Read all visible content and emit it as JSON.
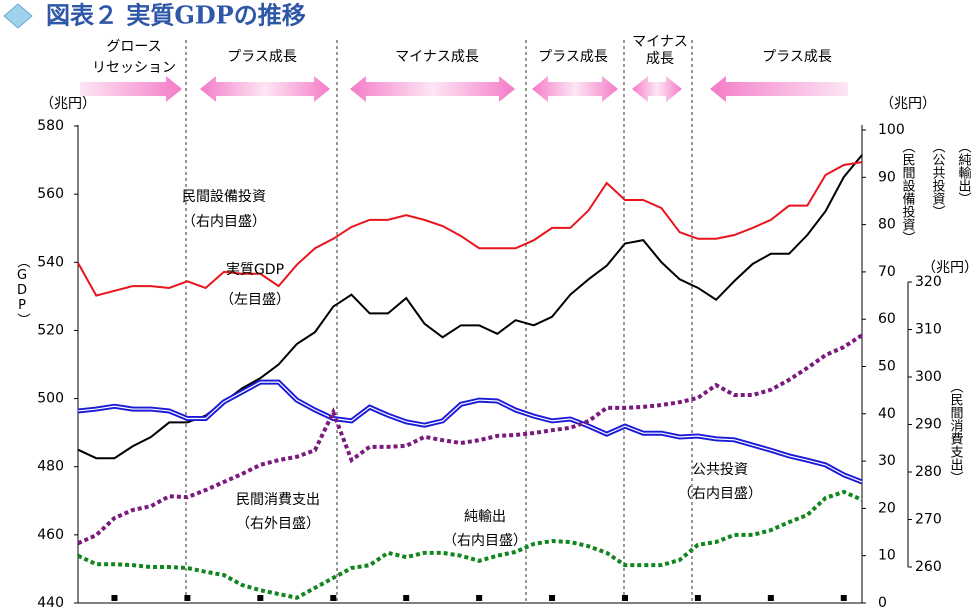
{
  "chart_data": {
    "type": "line",
    "title": "図表２ 実質GDPの推移",
    "categories": [
      null,
      null,
      null,
      null,
      null,
      null,
      null,
      null,
      null,
      null,
      null,
      null,
      null,
      null,
      null,
      null,
      null,
      null,
      null,
      null,
      null,
      null,
      null,
      null,
      null,
      null,
      null,
      null,
      null,
      null,
      null,
      null,
      null,
      null,
      null,
      null,
      null,
      null,
      null,
      null,
      null,
      null,
      null,
      null
    ],
    "ylim": [
      440,
      580
    ],
    "yticks": [
      440,
      460,
      480,
      500,
      520,
      540,
      560,
      580
    ],
    "y2lim": [
      0,
      100
    ],
    "y2ticks": [
      0,
      10,
      20,
      30,
      40,
      50,
      60,
      70,
      80,
      90,
      100
    ],
    "y3lim": [
      260,
      320
    ],
    "y3ticks": [
      260,
      270,
      280,
      290,
      300,
      310,
      320
    ],
    "units": {
      "y": "（兆円）",
      "y2": "（兆円）",
      "y3": "（兆円）"
    },
    "axis_titles": {
      "y": "（GDP）",
      "y2": [
        "（民間設備投資）",
        "（公共投資）",
        "（純輸出）"
      ],
      "y3": "（民間消費支出）"
    },
    "phases": [
      {
        "label": [
          "グロース",
          "リセッション"
        ]
      },
      {
        "label": [
          "プラス成長"
        ]
      },
      {
        "label": [
          "マイナス成長"
        ]
      },
      {
        "label": [
          "プラス成長"
        ]
      },
      {
        "label": [
          "マイナス",
          "成長"
        ]
      },
      {
        "label": [
          "プラス成長"
        ]
      }
    ],
    "series": [
      {
        "name": "実質GDP",
        "note": "（左目盛）",
        "color": "#000000",
        "axis": "y",
        "style": "solid",
        "values": [
          485,
          482.5,
          482.5,
          486,
          488.7,
          493,
          493,
          495,
          499,
          503,
          506,
          510,
          516,
          519.5,
          527,
          530.5,
          525,
          525,
          529.5,
          522,
          518,
          521.5,
          521.5,
          519,
          523,
          521.5,
          524,
          530.5,
          535,
          539,
          545.5,
          546.5,
          540,
          535,
          532.5,
          529,
          534.5,
          539.5,
          542.5,
          542.5,
          548,
          555,
          565,
          571.5
        ]
      },
      {
        "name": "民間設備投資",
        "note": "（右内目盛）",
        "color": "#e8141e",
        "axis": "y2",
        "style": "solid",
        "values": [
          71.9,
          65,
          66,
          67,
          67,
          66.6,
          68,
          66.6,
          70,
          69.6,
          69.6,
          67,
          71.5,
          75,
          77,
          79.5,
          81,
          81,
          82,
          81,
          79.7,
          77.6,
          75,
          75,
          75,
          76.7,
          79.3,
          79.3,
          83,
          88.8,
          85.2,
          85.2,
          83.5,
          78.4,
          77,
          77,
          77.8,
          79.3,
          81,
          84,
          84,
          90.5,
          92.6,
          93.2
        ]
      },
      {
        "name": "公共投資",
        "note": "（右内目盛）",
        "color": "#1a1ad8",
        "axis": "y2",
        "style": "double",
        "values": [
          40.6,
          41,
          41.6,
          41,
          41,
          40.6,
          39,
          39,
          42.5,
          44.6,
          46.7,
          46.7,
          42.9,
          40.8,
          39,
          38.5,
          41.4,
          39.7,
          38.3,
          37.6,
          38.5,
          42,
          42.9,
          42.7,
          40.8,
          39.5,
          38.5,
          38.9,
          37.4,
          35.7,
          37.4,
          35.9,
          35.9,
          35.1,
          35.3,
          34.7,
          34.5,
          33.4,
          32.3,
          31.1,
          30.2,
          29.2,
          27.1,
          25.6
        ]
      },
      {
        "name": "純輸出",
        "note": "（右内目盛）",
        "color": "#12861e",
        "axis": "y2",
        "style": "dotted",
        "values": [
          10,
          8.2,
          8.2,
          8,
          7.6,
          7.6,
          7.4,
          6.6,
          5.9,
          3.8,
          2.7,
          1.9,
          1.1,
          3.2,
          5.3,
          7.4,
          8,
          10.6,
          9.7,
          10.6,
          10.6,
          10,
          8.9,
          10,
          10.8,
          12.5,
          13.1,
          12.9,
          12,
          10.6,
          8,
          8,
          8,
          9.1,
          12.3,
          12.9,
          14.4,
          14.4,
          15.4,
          17.1,
          18.6,
          22.2,
          23.5,
          21.8
        ]
      },
      {
        "name": "民間消費支出",
        "note": "（右外目盛）",
        "color": "#7a1a7e",
        "axis": "y3",
        "style": "dotted",
        "values": [
          265,
          266.7,
          270.3,
          272,
          272.8,
          274.9,
          274.7,
          276.2,
          277.9,
          279.6,
          281.5,
          282.5,
          283.2,
          284.6,
          292.6,
          282.5,
          285.3,
          285.3,
          285.5,
          287.4,
          286.7,
          286.1,
          286.7,
          287.6,
          287.8,
          288.2,
          288.8,
          289.3,
          290.7,
          293.5,
          293.5,
          293.7,
          294.1,
          294.7,
          295.6,
          298.3,
          296.2,
          296.2,
          297.3,
          299.4,
          301.9,
          304.6,
          306.3,
          308.8
        ]
      }
    ]
  }
}
